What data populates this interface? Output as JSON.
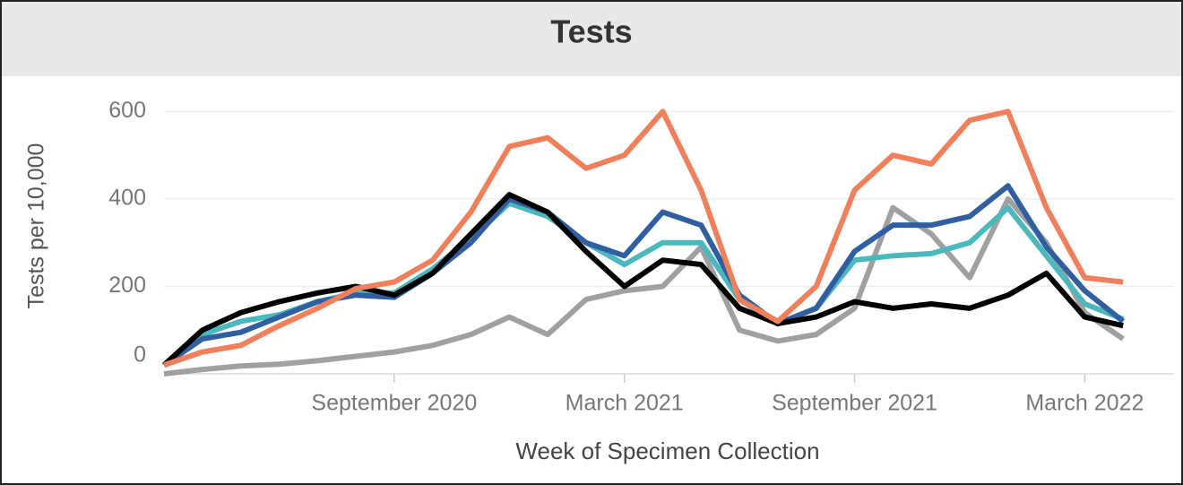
{
  "chart_data": {
    "type": "line",
    "title": "Tests",
    "y_label": "Tests per 10,000",
    "x_label": "Week of Specimen Collection",
    "x": [
      "2020-03",
      "2020-04",
      "2020-05",
      "2020-06",
      "2020-07",
      "2020-08",
      "2020-09",
      "2020-10",
      "2020-11",
      "2020-12",
      "2021-01",
      "2021-02",
      "2021-03",
      "2021-04",
      "2021-05",
      "2021-06",
      "2021-07",
      "2021-08",
      "2021-09",
      "2021-10",
      "2021-11",
      "2021-12",
      "2022-01",
      "2022-02",
      "2022-03",
      "2022-04"
    ],
    "xlim": [
      "2020-03",
      "2022-05"
    ],
    "xticks": [
      {
        "value": "2020-09",
        "label": "September 2020"
      },
      {
        "value": "2021-03",
        "label": "March 2021"
      },
      {
        "value": "2021-09",
        "label": "September 2021"
      },
      {
        "value": "2022-03",
        "label": "March 2022"
      }
    ],
    "ylim": [
      0,
      650
    ],
    "yticks": [
      0,
      200,
      400,
      600
    ],
    "grid": true,
    "series": [
      {
        "color": "#a0a0a0",
        "values": [
          0,
          10,
          18,
          22,
          30,
          40,
          50,
          65,
          90,
          130,
          90,
          170,
          190,
          200,
          290,
          100,
          75,
          90,
          150,
          380,
          320,
          220,
          400,
          300,
          140,
          80
        ]
      },
      {
        "color": "#4bb8bd",
        "values": [
          20,
          90,
          120,
          135,
          165,
          185,
          185,
          240,
          310,
          390,
          360,
          300,
          250,
          300,
          300,
          170,
          115,
          150,
          260,
          270,
          275,
          300,
          380,
          270,
          160,
          125
        ]
      },
      {
        "color": "#2f5fa0",
        "values": [
          20,
          80,
          95,
          130,
          165,
          180,
          175,
          230,
          300,
          400,
          370,
          300,
          270,
          370,
          340,
          180,
          115,
          150,
          280,
          340,
          340,
          360,
          430,
          290,
          190,
          120
        ]
      },
      {
        "color": "#000000",
        "values": [
          20,
          100,
          140,
          165,
          185,
          200,
          180,
          230,
          320,
          410,
          370,
          280,
          200,
          260,
          250,
          150,
          115,
          130,
          165,
          150,
          160,
          150,
          180,
          230,
          130,
          110
        ]
      },
      {
        "color": "#f07f5b",
        "values": [
          20,
          50,
          65,
          110,
          150,
          195,
          210,
          260,
          370,
          520,
          540,
          470,
          500,
          600,
          420,
          170,
          120,
          200,
          420,
          500,
          480,
          580,
          600,
          380,
          220,
          210
        ]
      }
    ]
  }
}
